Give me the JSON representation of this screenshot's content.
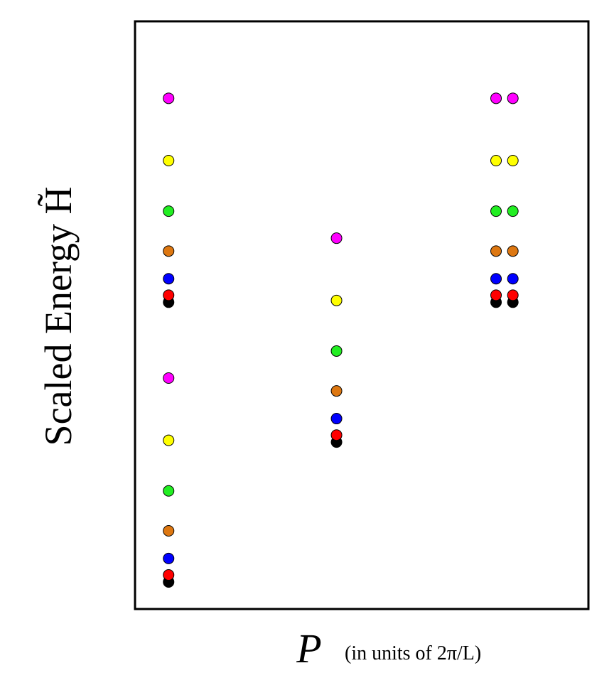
{
  "chart_data": {
    "type": "scatter",
    "ylabel": "Scaled Energy H̃",
    "xlabel": "P",
    "xlabel_units": "(in units of 2π/L)",
    "xlim": [
      -0.2,
      2.5
    ],
    "ylim": [
      0,
      10
    ],
    "series": [
      {
        "color": "#000000",
        "x": [
          0,
          0,
          1,
          1.95,
          2.05
        ],
        "y": [
          0.46,
          5.22,
          2.84,
          5.22,
          5.22
        ]
      },
      {
        "color": "#ff0000",
        "x": [
          0,
          0,
          1,
          1.95,
          2.05
        ],
        "y": [
          0.58,
          5.34,
          2.96,
          5.34,
          5.34
        ]
      },
      {
        "color": "#0000ff",
        "x": [
          0,
          0,
          1,
          1.95,
          2.05
        ],
        "y": [
          0.86,
          5.62,
          3.24,
          5.62,
          5.62
        ]
      },
      {
        "color": "#dd7711",
        "x": [
          0,
          0,
          1,
          1.95,
          2.05
        ],
        "y": [
          1.33,
          6.09,
          3.71,
          6.09,
          6.09
        ]
      },
      {
        "color": "#22ee22",
        "x": [
          0,
          0,
          1,
          1.95,
          2.05
        ],
        "y": [
          2.01,
          6.77,
          4.39,
          6.77,
          6.77
        ]
      },
      {
        "color": "#ffff00",
        "x": [
          0,
          0,
          1,
          1.95,
          2.05
        ],
        "y": [
          2.87,
          7.63,
          5.25,
          7.63,
          7.63
        ]
      },
      {
        "color": "#ff00ff",
        "x": [
          0,
          0,
          1,
          1.95,
          2.05
        ],
        "y": [
          3.93,
          8.69,
          6.31,
          8.69,
          8.69
        ]
      }
    ]
  }
}
